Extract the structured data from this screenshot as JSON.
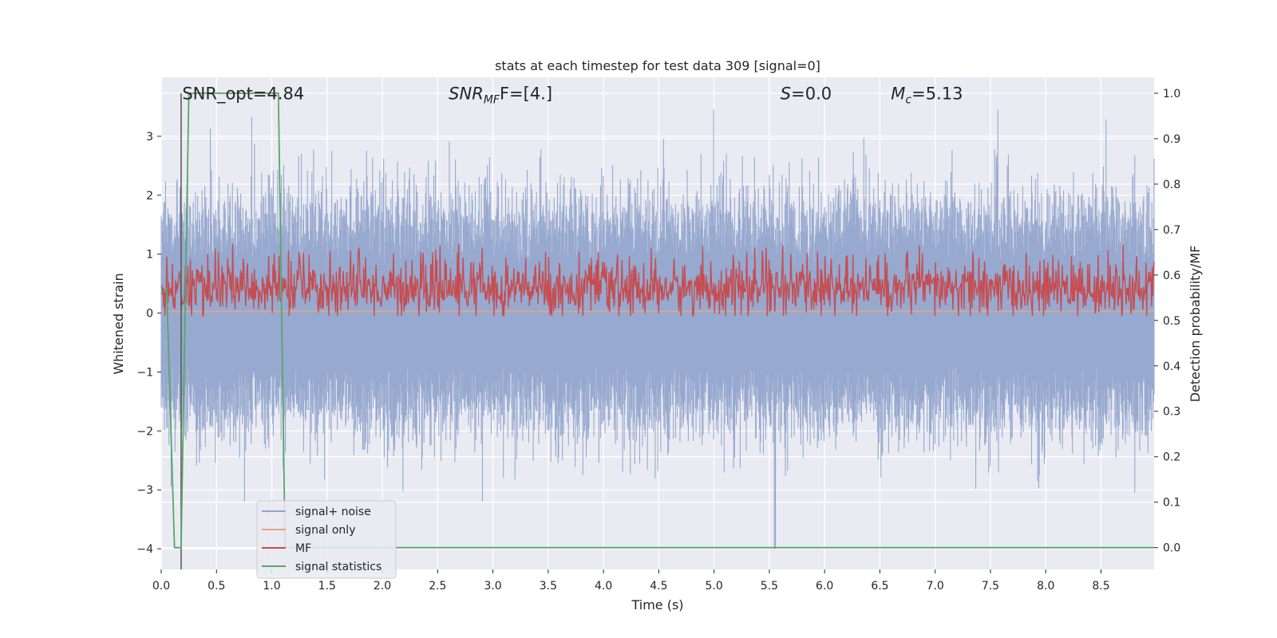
{
  "chart_data": {
    "type": "line",
    "title": "stats at each timestep for test data 309 [signal=0]",
    "xlabel": "Time (s)",
    "ylabel": "Whitened strain",
    "y2label": "Detection probability/MF",
    "xlim": [
      0.0,
      8.98
    ],
    "ylim": [
      -4.35,
      4.0
    ],
    "y2lim": [
      -0.048,
      1.035
    ],
    "xticks": [
      "0.0",
      "0.5",
      "1.0",
      "1.5",
      "2.0",
      "2.5",
      "3.0",
      "3.5",
      "4.0",
      "4.5",
      "5.0",
      "5.5",
      "6.0",
      "6.5",
      "7.0",
      "7.5",
      "8.0",
      "8.5"
    ],
    "yticks": [
      "3",
      "2",
      "1",
      "0",
      "−1",
      "−2",
      "−3",
      "−4"
    ],
    "y2ticks": [
      "0.0",
      "0.1",
      "0.2",
      "0.3",
      "0.4",
      "0.5",
      "0.6",
      "0.7",
      "0.8",
      "0.9",
      "1.0"
    ],
    "grid": true,
    "legend_position": "lower-left",
    "marker_x": 0.18,
    "annotations": [
      {
        "text": "SNR_opt=4.84",
        "x": 0.19,
        "y": 3.6
      },
      {
        "base": "SNR",
        "sub": "MF",
        "rest": "F=[4.]",
        "x": 2.6,
        "y": 3.6
      },
      {
        "base": "S",
        "rest": "=0.0",
        "x": 5.6,
        "y": 3.6
      },
      {
        "base": "M",
        "sub": "c",
        "rest": "=5.13",
        "x": 6.6,
        "y": 3.6
      }
    ],
    "series": [
      {
        "name": "signal+ noise",
        "color": "#92a5cc",
        "style": "noise band",
        "typical_range": [
          -1.5,
          1.5
        ],
        "max_peak": 3.45,
        "min_peak": -4.0,
        "min_peak_x": 5.55
      },
      {
        "name": "signal only",
        "color": "#e8a484",
        "x": [
          0.0,
          8.98
        ],
        "y": [
          0.03,
          0.03
        ]
      },
      {
        "name": "MF",
        "color": "#c44e52",
        "axis": "right",
        "typical_range": [
          0.52,
          0.62
        ],
        "max_peak": 0.67
      },
      {
        "name": "signal statistics",
        "color": "#55a868",
        "axis": "right",
        "x": [
          0.0,
          0.05,
          0.12,
          0.18,
          0.25,
          1.06,
          1.12,
          1.18,
          8.98
        ],
        "y": [
          0.56,
          0.57,
          0.0,
          0.0,
          1.0,
          1.0,
          0.0,
          0.0,
          0.0
        ]
      }
    ]
  }
}
